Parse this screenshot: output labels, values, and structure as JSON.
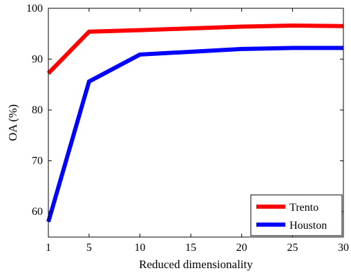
{
  "chart_data": {
    "type": "line",
    "title": "",
    "xlabel": "Reduced dimensionality",
    "ylabel": "OA (%)",
    "x": [
      1,
      5,
      10,
      20,
      25,
      30
    ],
    "xlim": [
      1,
      30
    ],
    "ylim": [
      55,
      100
    ],
    "xticks": [
      "1",
      "5",
      "10",
      "15",
      "20",
      "25",
      "30"
    ],
    "yticks": [
      "60",
      "70",
      "80",
      "90",
      "100"
    ],
    "grid": false,
    "legend_position": "bottom-right",
    "series": [
      {
        "name": "Trento",
        "color": "#ff0000",
        "values": [
          87.2,
          95.4,
          95.7,
          96.4,
          96.6,
          96.5
        ]
      },
      {
        "name": "Houston",
        "color": "#0000ff",
        "values": [
          58.0,
          85.6,
          90.9,
          92.0,
          92.2,
          92.2
        ]
      }
    ]
  }
}
